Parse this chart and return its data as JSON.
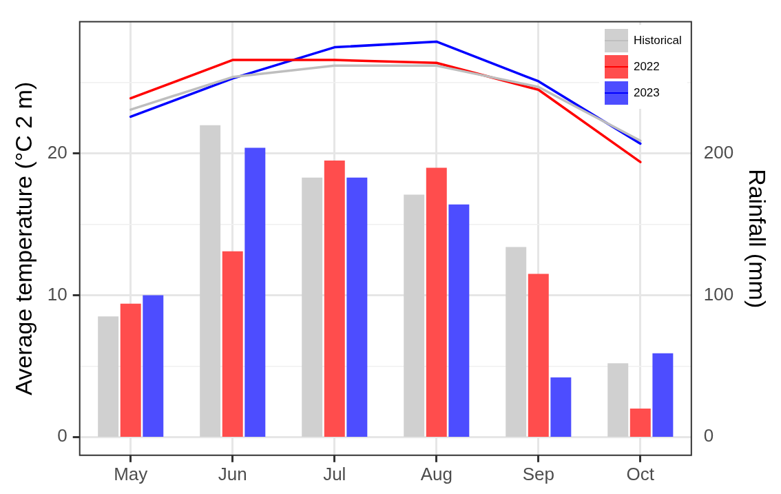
{
  "chart_data": {
    "type": "bar",
    "ylabel": "Average temperature (°C 2 m)",
    "y2label": "Rainfall (mm)",
    "categories": [
      "May",
      "Jun",
      "Jul",
      "Aug",
      "Sep",
      "Oct"
    ],
    "series": [
      {
        "name": "Historical",
        "axis": "y2",
        "color": "#d0d0d0",
        "values": [
          85,
          220,
          183,
          171,
          134,
          52
        ]
      },
      {
        "name": "2022",
        "axis": "y2",
        "color": "#ff4d4d",
        "values": [
          94,
          131,
          195,
          190,
          115,
          20
        ]
      },
      {
        "name": "2023",
        "axis": "y2",
        "color": "#4d4dff",
        "values": [
          100,
          204,
          183,
          164,
          42,
          59
        ]
      },
      {
        "type": "line",
        "color": "#bebebe",
        "values": [
          23.1,
          25.4,
          26.2,
          26.2,
          24.7,
          20.9
        ]
      },
      {
        "type": "line",
        "color": "#ff0000",
        "values": [
          23.9,
          26.6,
          26.6,
          26.4,
          24.5,
          19.4
        ]
      },
      {
        "type": "line",
        "color": "#0000ff",
        "values": [
          22.6,
          25.3,
          27.5,
          27.9,
          25.1,
          20.7
        ]
      }
    ],
    "ylim": [
      -1.3,
      29.3
    ],
    "yticks": [
      0,
      {
        "value": 5,
        "label": null
      },
      10,
      {
        "value": 15,
        "label": null
      },
      20,
      {
        "value": 25,
        "label": null
      }
    ],
    "y2lim": [
      -13,
      293
    ],
    "y2ticks": [
      0,
      100,
      200
    ],
    "grid": true,
    "legend": "top right",
    "marker": "none",
    "line_style": "solid"
  }
}
